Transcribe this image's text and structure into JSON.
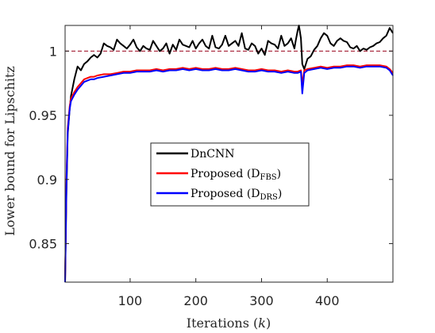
{
  "chart_data": {
    "type": "line",
    "xlabel": "Iterations (k)",
    "xlabel_parts": {
      "text": "Iterations ",
      "var": "k"
    },
    "ylabel": "Lower bound for Lipschitz",
    "xlim": [
      1,
      500
    ],
    "ylim": [
      0.82,
      1.02
    ],
    "xticks": [
      100,
      200,
      300,
      400
    ],
    "yticks": [
      0.85,
      0.9,
      0.95,
      1
    ],
    "ytick_labels": [
      "0.85",
      "0.9",
      "0.95",
      "1"
    ],
    "grid": false,
    "legend_position": "center",
    "reference_line": {
      "y": 1,
      "color": "#a3192e",
      "style": "dashed"
    },
    "series": [
      {
        "name": "DnCNN",
        "legend_main": "DnCNN",
        "legend_sub": "",
        "color": "#000000",
        "x": [
          1,
          3,
          5,
          8,
          10,
          15,
          20,
          25,
          30,
          35,
          40,
          45,
          50,
          55,
          60,
          65,
          70,
          75,
          80,
          85,
          90,
          95,
          100,
          105,
          110,
          115,
          120,
          125,
          130,
          135,
          140,
          145,
          150,
          155,
          160,
          165,
          170,
          175,
          180,
          185,
          190,
          195,
          200,
          205,
          210,
          215,
          220,
          225,
          230,
          235,
          240,
          245,
          250,
          255,
          260,
          265,
          270,
          275,
          280,
          285,
          290,
          295,
          300,
          305,
          310,
          315,
          320,
          325,
          330,
          335,
          340,
          345,
          350,
          352,
          355,
          357,
          360,
          362,
          365,
          370,
          375,
          380,
          385,
          390,
          395,
          400,
          405,
          410,
          415,
          420,
          425,
          430,
          435,
          440,
          445,
          450,
          455,
          460,
          465,
          470,
          475,
          480,
          485,
          490,
          495,
          500
        ],
        "y": [
          0.82,
          0.89,
          0.935,
          0.955,
          0.965,
          0.978,
          0.988,
          0.985,
          0.99,
          0.992,
          0.995,
          0.997,
          0.995,
          0.998,
          1.006,
          1.004,
          1.003,
          1.001,
          1.009,
          1.006,
          1.004,
          1.002,
          1.005,
          1.009,
          1.003,
          1.0,
          1.004,
          1.002,
          1.001,
          1.008,
          1.004,
          1.0,
          1.002,
          1.006,
          0.998,
          1.005,
          1.001,
          1.009,
          1.005,
          1.004,
          1.003,
          1.008,
          1.002,
          1.006,
          1.009,
          1.004,
          1.002,
          1.012,
          1.003,
          1.002,
          1.005,
          1.012,
          1.004,
          1.006,
          1.008,
          1.004,
          1.014,
          1.002,
          1.001,
          1.006,
          1.004,
          0.998,
          1.002,
          0.997,
          1.008,
          1.006,
          1.005,
          1.002,
          1.012,
          1.004,
          1.006,
          1.01,
          1.002,
          1.008,
          1.016,
          1.02,
          1.01,
          0.99,
          0.986,
          0.994,
          0.996,
          1.001,
          1.004,
          1.01,
          1.014,
          1.012,
          1.006,
          1.004,
          1.008,
          1.01,
          1.008,
          1.007,
          1.003,
          1.002,
          1.004,
          1.0,
          1.002,
          1.001,
          1.003,
          1.004,
          1.006,
          1.007,
          1.01,
          1.012,
          1.018,
          1.014
        ]
      },
      {
        "name": "Proposed (D_FBS)",
        "legend_main": "Proposed (D",
        "legend_sub": "FBS",
        "color": "#ff0000",
        "x": [
          1,
          3,
          5,
          8,
          10,
          15,
          20,
          25,
          30,
          35,
          40,
          45,
          50,
          60,
          70,
          80,
          90,
          100,
          110,
          120,
          130,
          140,
          150,
          160,
          170,
          180,
          190,
          200,
          210,
          220,
          230,
          240,
          250,
          260,
          270,
          280,
          290,
          300,
          310,
          320,
          330,
          340,
          350,
          355,
          360,
          362,
          365,
          370,
          380,
          390,
          400,
          410,
          420,
          430,
          440,
          450,
          460,
          470,
          480,
          490,
          495,
          500
        ],
        "y": [
          0.82,
          0.9,
          0.94,
          0.957,
          0.963,
          0.968,
          0.972,
          0.975,
          0.978,
          0.979,
          0.98,
          0.98,
          0.981,
          0.982,
          0.982,
          0.983,
          0.984,
          0.984,
          0.985,
          0.985,
          0.985,
          0.986,
          0.985,
          0.986,
          0.986,
          0.987,
          0.986,
          0.987,
          0.986,
          0.986,
          0.987,
          0.986,
          0.986,
          0.987,
          0.986,
          0.985,
          0.985,
          0.986,
          0.985,
          0.985,
          0.984,
          0.985,
          0.984,
          0.984,
          0.985,
          0.974,
          0.985,
          0.986,
          0.987,
          0.988,
          0.987,
          0.988,
          0.988,
          0.989,
          0.989,
          0.988,
          0.989,
          0.989,
          0.989,
          0.988,
          0.986,
          0.983
        ]
      },
      {
        "name": "Proposed (D_DRS)",
        "legend_main": "Proposed (D",
        "legend_sub": "DRS",
        "color": "#0000ff",
        "x": [
          1,
          3,
          5,
          8,
          10,
          15,
          20,
          25,
          30,
          35,
          40,
          45,
          50,
          60,
          70,
          80,
          90,
          100,
          110,
          120,
          130,
          140,
          150,
          160,
          170,
          180,
          190,
          200,
          210,
          220,
          230,
          240,
          250,
          260,
          270,
          280,
          290,
          300,
          310,
          320,
          330,
          340,
          350,
          355,
          360,
          362,
          365,
          370,
          380,
          390,
          400,
          410,
          420,
          430,
          440,
          450,
          460,
          470,
          480,
          490,
          495,
          500
        ],
        "y": [
          0.82,
          0.895,
          0.937,
          0.955,
          0.961,
          0.966,
          0.97,
          0.973,
          0.976,
          0.977,
          0.978,
          0.978,
          0.979,
          0.98,
          0.981,
          0.982,
          0.983,
          0.983,
          0.984,
          0.984,
          0.984,
          0.985,
          0.984,
          0.985,
          0.985,
          0.986,
          0.985,
          0.986,
          0.985,
          0.985,
          0.986,
          0.985,
          0.985,
          0.986,
          0.985,
          0.984,
          0.984,
          0.985,
          0.984,
          0.984,
          0.983,
          0.984,
          0.983,
          0.983,
          0.984,
          0.967,
          0.983,
          0.985,
          0.986,
          0.987,
          0.986,
          0.987,
          0.987,
          0.988,
          0.988,
          0.987,
          0.988,
          0.988,
          0.988,
          0.987,
          0.985,
          0.981
        ]
      }
    ]
  }
}
